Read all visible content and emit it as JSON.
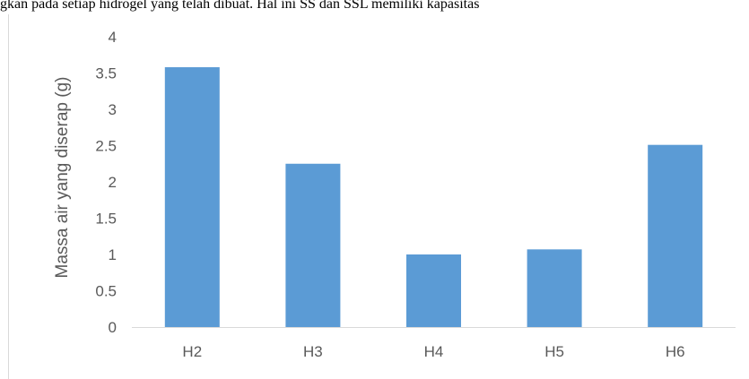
{
  "top_text": "gkan pada setiap hidrogel yang telah dibuat. Hal ini SS dan SSL memiliki kapasitas",
  "chart_data": {
    "type": "bar",
    "categories": [
      "H2",
      "H3",
      "H4",
      "H5",
      "H6"
    ],
    "values": [
      3.58,
      2.25,
      1.0,
      1.07,
      2.51
    ],
    "title": "",
    "xlabel": "",
    "ylabel": "Massa air yang diserap (g)",
    "ylim": [
      0,
      4
    ],
    "yticks": [
      "0",
      "0.5",
      "1",
      "1.5",
      "2",
      "2.5",
      "3",
      "3.5",
      "4"
    ],
    "grid": false,
    "bar_color": "#5b9bd5",
    "axis_color": "#d9d9d9"
  }
}
